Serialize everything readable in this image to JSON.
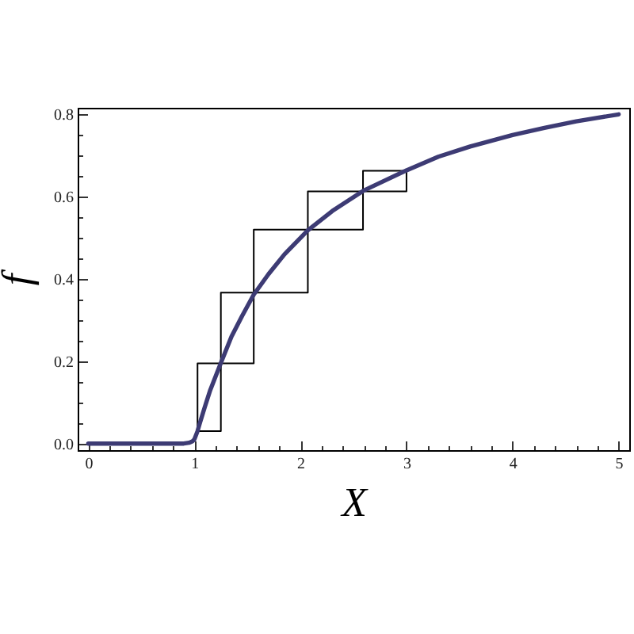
{
  "chart_data": {
    "type": "line",
    "xlabel": "X",
    "ylabel": "f",
    "xlim": [
      -0.1,
      5.1
    ],
    "ylim": [
      -0.016,
      0.816
    ],
    "xticks": [
      0,
      {
        "value": 0.2,
        "label": null
      },
      {
        "value": 0.4,
        "label": null
      },
      {
        "value": 0.6,
        "label": null
      },
      {
        "value": 0.8,
        "label": null
      },
      1,
      {
        "value": 1.2,
        "label": null
      },
      {
        "value": 1.4,
        "label": null
      },
      {
        "value": 1.6,
        "label": null
      },
      {
        "value": 1.8,
        "label": null
      },
      2,
      {
        "value": 2.2,
        "label": null
      },
      {
        "value": 2.4,
        "label": null
      },
      {
        "value": 2.6,
        "label": null
      },
      {
        "value": 2.8,
        "label": null
      },
      3,
      {
        "value": 3.2,
        "label": null
      },
      {
        "value": 3.4,
        "label": null
      },
      {
        "value": 3.6,
        "label": null
      },
      {
        "value": 3.8,
        "label": null
      },
      4,
      {
        "value": 4.2,
        "label": null
      },
      {
        "value": 4.4,
        "label": null
      },
      {
        "value": 4.6,
        "label": null
      },
      {
        "value": 4.8,
        "label": null
      },
      5
    ],
    "yticks": [
      {
        "value": 0,
        "label": "0.0"
      },
      {
        "value": 0.05,
        "label": null
      },
      {
        "value": 0.1,
        "label": null
      },
      {
        "value": 0.15,
        "label": null
      },
      0.2,
      {
        "value": 0.25,
        "label": null
      },
      {
        "value": 0.3,
        "label": null
      },
      {
        "value": 0.35,
        "label": null
      },
      0.4,
      {
        "value": 0.45,
        "label": null
      },
      {
        "value": 0.5,
        "label": null
      },
      {
        "value": 0.55,
        "label": null
      },
      0.6,
      {
        "value": 0.65,
        "label": null
      },
      {
        "value": 0.7,
        "label": null
      },
      {
        "value": 0.75,
        "label": null
      },
      0.8
    ],
    "grid": false,
    "series": [
      {
        "type": "step",
        "color": "#000000",
        "x": [
          1.03,
          1.25,
          1.56,
          2.07,
          2.59,
          3.0
        ],
        "values": [
          0.03,
          0.195,
          0.367,
          0.52,
          0.613,
          0.663
        ]
      },
      {
        "type": "step",
        "color": "#000000",
        "x": [
          1.03,
          1.03,
          1.25,
          1.56,
          2.07,
          2.59,
          3.0
        ],
        "values": [
          0.03,
          0.195,
          0.367,
          0.52,
          0.613,
          0.663,
          0.663
        ]
      },
      {
        "color": "#3d3b74",
        "x": [
          0,
          0.5,
          0.9,
          0.95,
          0.98,
          1.0,
          1.03,
          1.05,
          1.1,
          1.15,
          1.25,
          1.35,
          1.45,
          1.56,
          1.7,
          1.85,
          2.07,
          2.3,
          2.59,
          3.0,
          3.3,
          3.6,
          4.0,
          4.3,
          4.6,
          5.0
        ],
        "values": [
          0,
          0,
          0,
          0.002,
          0.005,
          0.01,
          0.03,
          0.048,
          0.09,
          0.13,
          0.196,
          0.26,
          0.31,
          0.362,
          0.412,
          0.46,
          0.518,
          0.565,
          0.614,
          0.664,
          0.697,
          0.722,
          0.75,
          0.767,
          0.783,
          0.8
        ]
      }
    ]
  }
}
